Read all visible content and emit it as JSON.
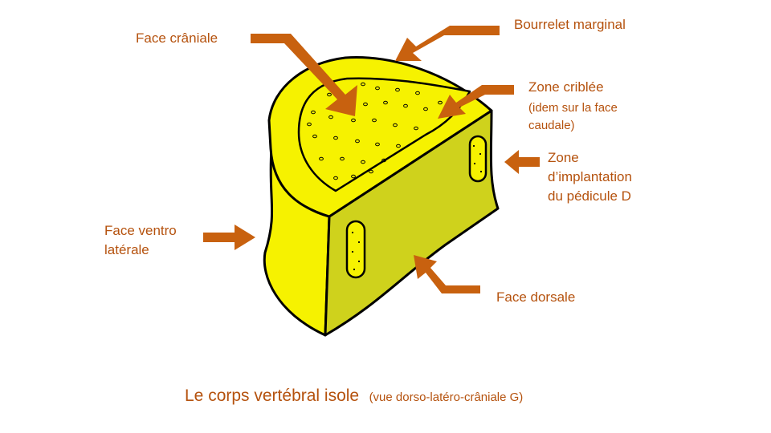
{
  "labels": {
    "face_craniale": "Face crâniale",
    "bourrelet_marginal": "Bourrelet marginal",
    "zone_criblee": "Zone criblée",
    "zone_criblee_note_1": "(idem sur la face",
    "zone_criblee_note_2": "caudale)",
    "zone_implantation_1": "Zone",
    "zone_implantation_2": "d’implantation",
    "zone_implantation_3": "du pédicule  D",
    "face_ventro_laterale_1": "Face ventro",
    "face_ventro_laterale_2": "latérale",
    "face_dorsale": "Face dorsale"
  },
  "caption": {
    "main": "Le corps  vertébral isole",
    "sub": "(vue dorso-latéro-crâniale G)"
  },
  "colors": {
    "label_text": "#b5520e",
    "arrow": "#c8610f",
    "bright_yellow": "#f6f200",
    "dark_yellow": "#cfd21c",
    "outline": "#000000"
  }
}
